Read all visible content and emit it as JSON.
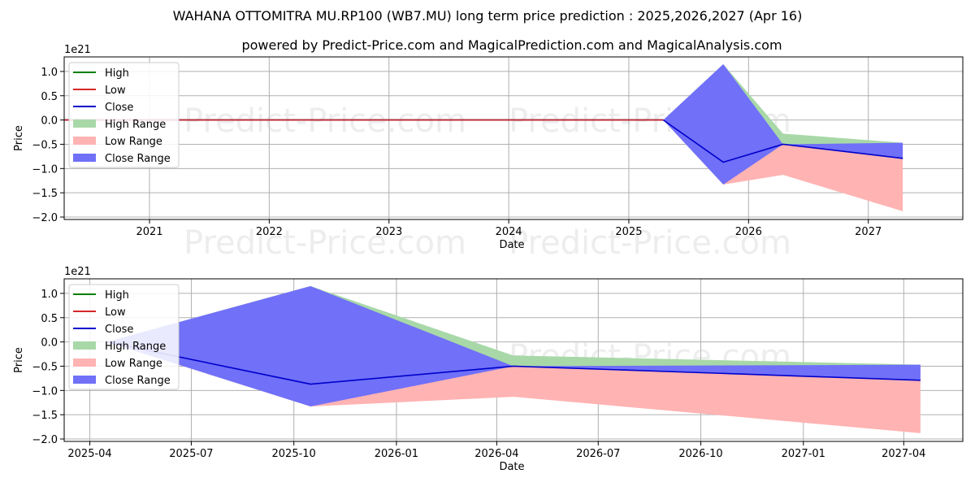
{
  "title": "WAHANA OTTOMITRA MU.RP100 (WB7.MU) long term price prediction : 2025,2026,2027 (Apr 16)",
  "subtitle": "powered by Predict-Price.com and MagicalPrediction.com and MagicalAnalysis.com",
  "watermark": "Predict-Price.com",
  "colors": {
    "high": "#008000",
    "low": "#d62728",
    "close": "#0000cc",
    "high_range": "#a8d8a8",
    "low_range": "#ffb3b3",
    "close_range": "#7070f8"
  },
  "chart_data": [
    {
      "type": "line",
      "xlabel": "Date",
      "ylabel": "Price",
      "y_exponent_label": "1e21",
      "xlim": [
        "2020-04-16",
        "2027-10-16"
      ],
      "ylim": [
        -2.05,
        1.3
      ],
      "x_ticks": [
        "2021",
        "2022",
        "2023",
        "2024",
        "2025",
        "2026",
        "2027"
      ],
      "x_tick_dates": [
        "2021-01-01",
        "2022-01-01",
        "2023-01-01",
        "2024-01-01",
        "2025-01-01",
        "2026-01-01",
        "2027-01-01"
      ],
      "y_ticks": [
        1.0,
        0.5,
        0.0,
        -0.5,
        -1.0,
        -1.5,
        -2.0
      ],
      "y_tick_labels": [
        "1.0",
        "0.5",
        "0.0",
        "−0.5",
        "−1.0",
        "−1.5",
        "−2.0"
      ],
      "grid": true,
      "legend_position": "upper-left",
      "legend": [
        "High",
        "Low",
        "Close",
        "High Range",
        "Low Range",
        "Close Range"
      ],
      "history": {
        "x": [
          "2020-04-16",
          "2025-04-16"
        ],
        "high": [
          0,
          0
        ],
        "low": [
          0,
          0
        ],
        "close": [
          0,
          0
        ]
      },
      "forecast": {
        "x": [
          "2025-04-16",
          "2025-10-16",
          "2026-04-16",
          "2027-04-16"
        ],
        "close": [
          0,
          -0.87,
          -0.5,
          -0.79
        ],
        "high_range_upper": [
          0,
          1.15,
          -0.28,
          -0.47
        ],
        "high_range_lower": [
          0,
          -1.32,
          -0.5,
          -0.5
        ],
        "low_range_upper": [
          0,
          -1.32,
          -0.5,
          -0.5
        ],
        "low_range_lower": [
          0,
          -1.33,
          -1.13,
          -1.88
        ],
        "close_range_upper": [
          0,
          1.15,
          -0.5,
          -0.47
        ],
        "close_range_lower": [
          0,
          -1.33,
          -0.5,
          -0.79
        ]
      }
    },
    {
      "type": "line",
      "xlabel": "Date",
      "ylabel": "Price",
      "y_exponent_label": "1e21",
      "xlim": [
        "2025-03-09",
        "2027-05-24"
      ],
      "ylim": [
        -2.05,
        1.3
      ],
      "x_ticks": [
        "2025-04",
        "2025-07",
        "2025-10",
        "2026-01",
        "2026-04",
        "2026-07",
        "2026-10",
        "2027-01",
        "2027-04"
      ],
      "x_tick_dates": [
        "2025-04-01",
        "2025-07-01",
        "2025-10-01",
        "2026-01-01",
        "2026-04-01",
        "2026-07-01",
        "2026-10-01",
        "2027-01-01",
        "2027-04-01"
      ],
      "y_ticks": [
        1.0,
        0.5,
        0.0,
        -0.5,
        -1.0,
        -1.5,
        -2.0
      ],
      "y_tick_labels": [
        "1.0",
        "0.5",
        "0.0",
        "−0.5",
        "−1.0",
        "−1.5",
        "−2.0"
      ],
      "grid": true,
      "legend_position": "upper-left",
      "legend": [
        "High",
        "Low",
        "Close",
        "High Range",
        "Low Range",
        "Close Range"
      ],
      "forecast": {
        "x": [
          "2025-04-16",
          "2025-10-16",
          "2026-04-16",
          "2027-04-16"
        ],
        "close": [
          0,
          -0.87,
          -0.5,
          -0.79
        ],
        "high_range_upper": [
          0,
          1.15,
          -0.28,
          -0.47
        ],
        "high_range_lower": [
          0,
          -1.32,
          -0.5,
          -0.5
        ],
        "low_range_upper": [
          0,
          -1.32,
          -0.5,
          -0.5
        ],
        "low_range_lower": [
          0,
          -1.33,
          -1.13,
          -1.88
        ],
        "close_range_upper": [
          0,
          1.15,
          -0.5,
          -0.47
        ],
        "close_range_lower": [
          0,
          -1.33,
          -0.5,
          -0.79
        ]
      }
    }
  ]
}
